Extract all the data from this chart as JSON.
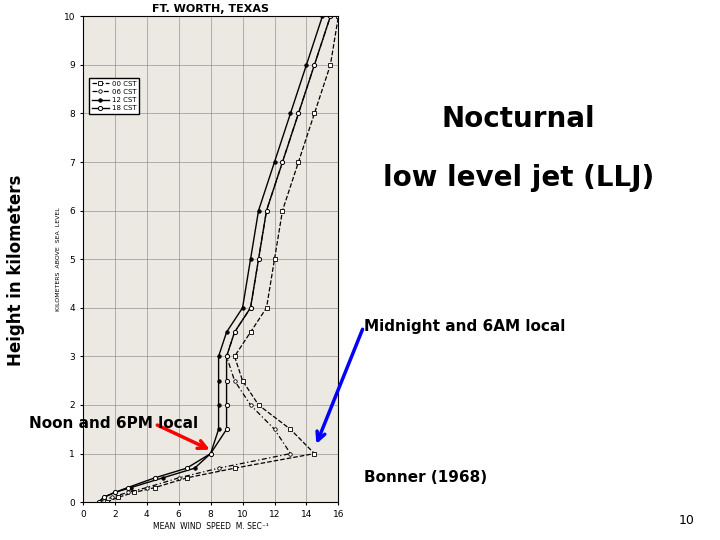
{
  "title_line1": "Nocturnal",
  "title_line2": "low level jet (LLJ)",
  "ylabel": "Height in kilometers",
  "chart_title": "FT. WORTH, TEXAS",
  "xlabel_inner": "MEAN  WIND  SPEED  M. SEC⁻¹",
  "annotation_noon": "Noon and 6PM local",
  "annotation_midnight": "Midnight and 6AM local",
  "reference": "Bonner (1968)",
  "slide_number": "10",
  "background_color": "#ffffff",
  "chart_bg": "#ece9e3",
  "title_fontsize": 20,
  "ylabel_fontsize": 12,
  "annotation_fontsize": 11,
  "ref_fontsize": 11,
  "curve_00cst": {
    "label": "00 CST",
    "heights": [
      0.0,
      0.1,
      0.2,
      0.3,
      0.5,
      0.7,
      1.0,
      1.5,
      2.0,
      2.5,
      3.0,
      3.5,
      4.0,
      5.0,
      6.0,
      7.0,
      8.0,
      9.0,
      10.0
    ],
    "speeds": [
      1.5,
      2.2,
      3.2,
      4.5,
      6.5,
      9.5,
      14.5,
      13.0,
      11.0,
      10.0,
      9.5,
      10.5,
      11.5,
      12.0,
      12.5,
      13.5,
      14.5,
      15.5,
      16.0
    ]
  },
  "curve_06cst": {
    "label": "06 CST",
    "heights": [
      0.0,
      0.1,
      0.2,
      0.3,
      0.5,
      0.7,
      1.0,
      1.5,
      2.0,
      2.5,
      3.0,
      3.5,
      4.0,
      5.0,
      6.0,
      7.0,
      8.0,
      9.0,
      10.0
    ],
    "speeds": [
      1.0,
      1.8,
      2.8,
      4.0,
      6.0,
      8.5,
      13.0,
      12.0,
      10.5,
      9.5,
      9.0,
      9.5,
      10.5,
      11.0,
      11.5,
      12.5,
      13.5,
      14.5,
      15.5
    ]
  },
  "curve_12cst": {
    "label": "12 CST",
    "heights": [
      0.0,
      0.1,
      0.2,
      0.3,
      0.5,
      0.7,
      1.0,
      1.5,
      2.0,
      2.5,
      3.0,
      3.5,
      4.0,
      5.0,
      6.0,
      7.0,
      8.0,
      9.0,
      10.0
    ],
    "speeds": [
      1.0,
      1.3,
      2.0,
      3.0,
      5.0,
      7.0,
      8.0,
      8.5,
      8.5,
      8.5,
      8.5,
      9.0,
      10.0,
      10.5,
      11.0,
      12.0,
      13.0,
      14.0,
      15.0
    ]
  },
  "curve_18cst": {
    "label": "18 CST",
    "heights": [
      0.0,
      0.1,
      0.2,
      0.3,
      0.5,
      0.7,
      1.0,
      1.5,
      2.0,
      2.5,
      3.0,
      3.5,
      4.0,
      5.0,
      6.0,
      7.0,
      8.0,
      9.0,
      10.0
    ],
    "speeds": [
      1.0,
      1.3,
      2.0,
      2.8,
      4.5,
      6.5,
      8.0,
      9.0,
      9.0,
      9.0,
      9.0,
      9.5,
      10.5,
      11.0,
      11.5,
      12.5,
      13.5,
      14.5,
      15.5
    ]
  }
}
